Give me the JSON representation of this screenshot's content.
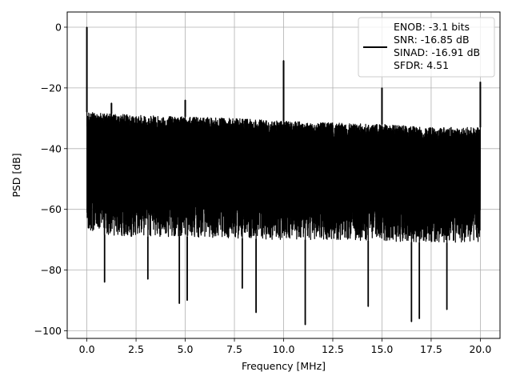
{
  "chart_data": {
    "type": "line",
    "title": "",
    "xlabel": "Frequency [MHz]",
    "ylabel": "PSD [dB]",
    "xlim": [
      -1.0,
      21.0
    ],
    "ylim": [
      -102.5,
      5.0
    ],
    "xticks": [
      0.0,
      2.5,
      5.0,
      7.5,
      10.0,
      12.5,
      15.0,
      17.5,
      20.0
    ],
    "xtick_labels": [
      "0.0",
      "2.5",
      "5.0",
      "7.5",
      "10.0",
      "12.5",
      "15.0",
      "17.5",
      "20.0"
    ],
    "yticks": [
      0,
      -20,
      -40,
      -60,
      -80,
      -100
    ],
    "ytick_labels": [
      "0",
      "−20",
      "−40",
      "−60",
      "−80",
      "−100"
    ],
    "grid": true,
    "legend_position": "top-right",
    "line_color": "#000000",
    "series": [
      {
        "name": "ENOB: -3.1 bits\nSNR: -16.85 dB\nSINAD: -16.91 dB\nSFDR: 4.51",
        "legend_lines": [
          "ENOB: -3.1 bits",
          "SNR: -16.85 dB",
          "SINAD: -16.91 dB",
          "SFDR: 4.51"
        ],
        "envelope": {
          "x": [
            0.0,
            2.5,
            5.0,
            7.5,
            10.0,
            12.5,
            15.0,
            17.5,
            20.0
          ],
          "upper": [
            -28,
            -29,
            -29.5,
            -30,
            -31,
            -31.5,
            -32,
            -33,
            -33
          ],
          "typical_low": [
            -68,
            -69,
            -69,
            -69.5,
            -70,
            -70,
            -70.5,
            -71,
            -71
          ]
        },
        "peaks": [
          {
            "x": 0.0,
            "y": 0.0
          },
          {
            "x": 1.25,
            "y": -25.0
          },
          {
            "x": 5.0,
            "y": -24.0
          },
          {
            "x": 10.0,
            "y": -11.0
          },
          {
            "x": 15.0,
            "y": -20.0
          },
          {
            "x": 20.0,
            "y": -18.0
          }
        ],
        "notches": [
          {
            "x": 0.9,
            "y": -84.0
          },
          {
            "x": 3.1,
            "y": -83.0
          },
          {
            "x": 4.7,
            "y": -91.0
          },
          {
            "x": 5.1,
            "y": -90.0
          },
          {
            "x": 7.9,
            "y": -86.0
          },
          {
            "x": 8.6,
            "y": -94.0
          },
          {
            "x": 11.1,
            "y": -98.0
          },
          {
            "x": 14.3,
            "y": -92.0
          },
          {
            "x": 16.5,
            "y": -97.0
          },
          {
            "x": 16.9,
            "y": -96.0
          },
          {
            "x": 18.3,
            "y": -93.0
          }
        ]
      }
    ]
  }
}
